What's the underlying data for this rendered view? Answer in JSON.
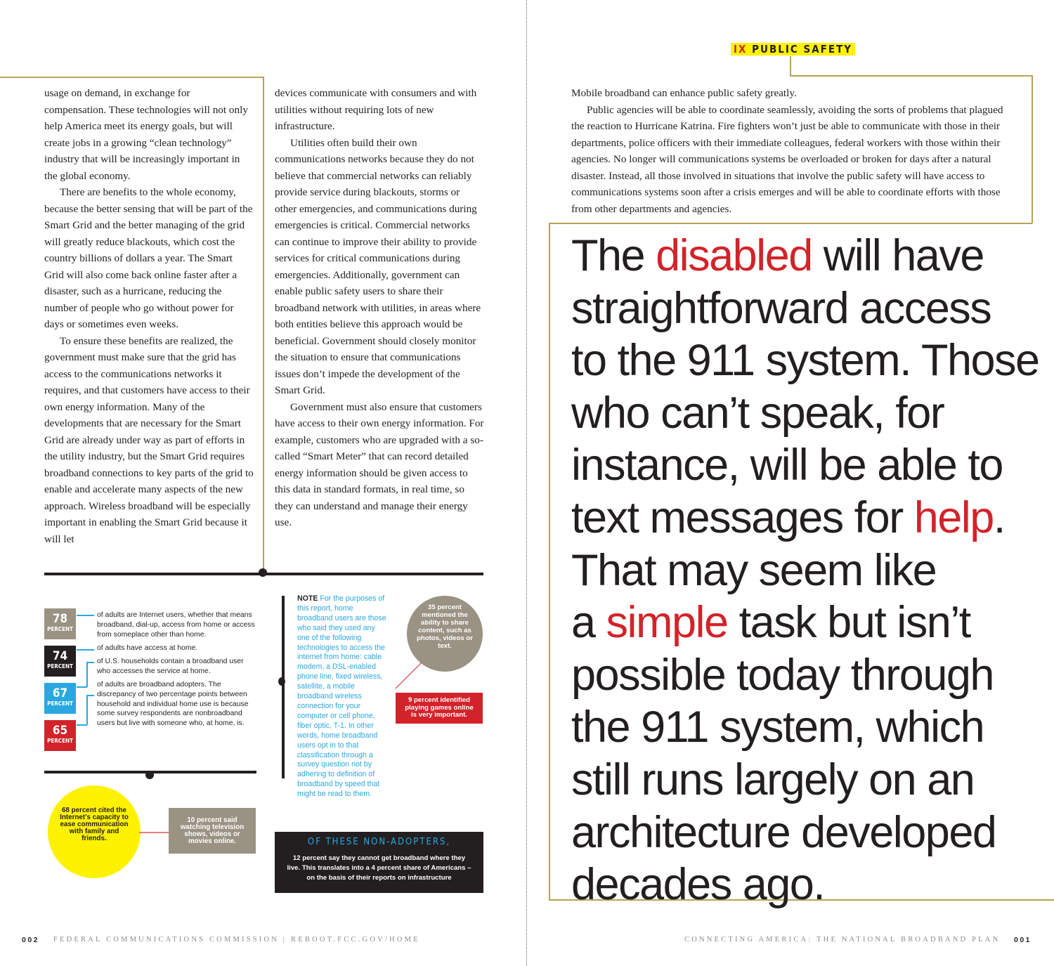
{
  "left_page": {
    "column1": [
      "usage on demand, in exchange for compensation. These technologies will not only help America meet its energy goals, but will create jobs in a growing “clean technology” industry that will be increasingly important in the global economy.",
      "There are benefits to the whole economy, because the better sensing that will be part of the Smart Grid and the better managing of the grid will greatly reduce blackouts, which cost the country billions of dollars a year. The Smart Grid will also come back online faster after a disaster, such as a hurricane, reducing the number of people who go without power for days or sometimes even weeks.",
      "To ensure these benefits are realized, the government must make sure that the grid has access to the communications networks it requires, and that customers have access to their own energy information. Many of the developments that are necessary for the Smart Grid are already under way as part of efforts in the utility industry, but the Smart Grid requires broadband connections to key parts of the grid to enable and accelerate many aspects of the new approach. Wireless broadband will be especially important in enabling the Smart Grid because it will let"
    ],
    "column2": [
      "devices communicate with consumers and with utilities without requiring lots of new infrastructure.",
      "Utilities often build their own communications networks because they do not believe that commercial networks can reliably provide service during blackouts, storms or other emergencies, and communications during emergencies is critical. Commercial networks can continue to improve their ability to provide services for critical communications during emergencies. Additionally, government can enable public safety users to share their broadband network with utilities, in areas where both entities believe this approach would be beneficial. Government should closely monitor the situation to ensure that communications issues don’t impede the development of the Smart Grid.",
      "Government must also ensure that customers have access to their own energy information. For example, customers who are upgraded with a so-called “Smart Meter” that can record detailed energy information should be given access to this data in standard formats, in real time, so they can understand and manage their energy use."
    ],
    "stats": [
      {
        "value": "78",
        "unit": "PERCENT",
        "color": "#9a9283",
        "text": "of adults are Internet users, whether that means broadband, dial-up, access from home or access from someplace other than home."
      },
      {
        "value": "74",
        "unit": "PERCENT",
        "color": "#231f20",
        "text": "of adults have access at home."
      },
      {
        "value": "67",
        "unit": "PERCENT",
        "color": "#29a8e0",
        "text": "of U.S. households contain a broadband user who accesses the service at home."
      },
      {
        "value": "65",
        "unit": "PERCENT",
        "color": "#d2232a",
        "text": "of adults are broadband adopters. The discrepancy of two percentage points between household and individual home use is because some survey respondents are nonbroadband users but live with someone who, at home, is."
      }
    ],
    "note": {
      "label": "NOTE",
      "text": "For the purposes of this report, home broadband users are those who said they used any one of the following technologies to access the internet from home: cable modem, a DSL-enabled phone line, fixed wireless, satellite, a mobile broadband wireless connection for your computer or cell phone, fiber optic, T-1. In other words, home broadband users opt in to that classification through a survey question not by adhering to definition of broadband by speed that might be read to them."
    },
    "circle_35": "35 percent mentioned the ability to share content, such as photos, videos or text.",
    "box_9": "9 percent identified playing games online is very important.",
    "circle_68": "68 percent cited the Internet’s capacity to ease communication with family and friends.",
    "box_10": "10 percent said watching television shows, videos or movies online.",
    "non_adopters": {
      "title": "OF THESE NON-ADOPTERS,",
      "text": "12 percent say they cannot get broadband where they live. This translates into a 4 percent share of Americans – on the basis of their reports on infrastructure"
    },
    "footer": {
      "page_number": "002",
      "text": "FEDERAL COMMUNICATIONS COMMISSION | REBOOT.FCC.GOV/HOME"
    }
  },
  "right_page": {
    "section": {
      "numeral": "IX",
      "title": "PUBLIC SAFETY"
    },
    "paragraphs": [
      "Mobile broadband can enhance public safety greatly.",
      "Public agencies will be able to coordinate seamlessly, avoiding the sorts of problems that plagued the reaction to Hurricane Katrina. Fire fighters won’t just be able to communicate with those in their departments, police officers with their immediate colleagues, federal workers with those within their agencies. No longer will communications systems be overloaded or broken for days after a natural disaster. Instead, all those involved in situations that involve the public safety will have access to communications systems soon after a crisis emerges and will be able to coordinate efforts with those from other departments and agencies."
    ],
    "pull_quote": [
      [
        "The ",
        "disabled",
        " will have"
      ],
      [
        "straightforward access"
      ],
      [
        "to the 911 system. Those"
      ],
      [
        "who can’t speak, for"
      ],
      [
        "instance, will be able to"
      ],
      [
        "text messages for ",
        "help",
        "."
      ],
      [
        "That may seem like"
      ],
      [
        "a ",
        "simple",
        " task but isn’t"
      ],
      [
        "possible today through"
      ],
      [
        "the 911 system, which"
      ],
      [
        "still runs largely on an"
      ],
      [
        "architecture developed"
      ],
      [
        "decades ago."
      ]
    ],
    "highlight_color": "#d2232a",
    "section_highlight": "#fff200",
    "footer": {
      "text": "CONNECTING AMERICA: THE NATIONAL BROADBAND PLAN",
      "page_number": "001"
    }
  }
}
